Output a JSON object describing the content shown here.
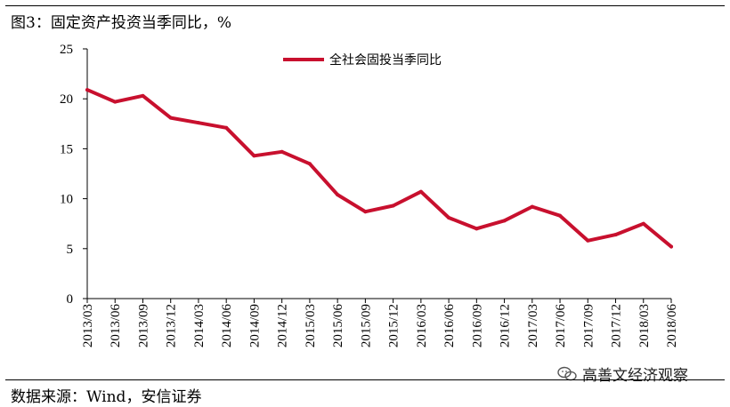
{
  "figure_title": "图3：固定资产投资当季同比，%",
  "source_note": "数据来源：Wind，安信证券",
  "watermark_text": "高善文经济观察",
  "watermark_icon": "wechat-icon",
  "colors": {
    "series": "#C8102E",
    "axis": "#000000"
  },
  "chart_data": {
    "type": "line",
    "title": "",
    "xlabel": "",
    "ylabel": "",
    "ylim": [
      0,
      25
    ],
    "yticks": [
      "0",
      "5",
      "10",
      "15",
      "20",
      "25"
    ],
    "x": [
      "2013/03",
      "2013/06",
      "2013/09",
      "2013/12",
      "2014/03",
      "2014/06",
      "2014/09",
      "2014/12",
      "2015/03",
      "2015/06",
      "2015/09",
      "2015/12",
      "2016/03",
      "2016/06",
      "2016/09",
      "2016/12",
      "2017/03",
      "2017/06",
      "2017/09",
      "2017/12",
      "2018/03",
      "2018/06"
    ],
    "grid": false,
    "legend_position": "top-center",
    "series": [
      {
        "name": "全社会固投当季同比",
        "values": [
          20.9,
          19.7,
          20.3,
          18.1,
          17.6,
          17.1,
          14.3,
          14.7,
          13.5,
          10.4,
          8.7,
          9.3,
          10.7,
          8.1,
          7.0,
          7.8,
          9.2,
          8.3,
          5.8,
          6.4,
          7.5,
          5.2
        ]
      }
    ]
  }
}
